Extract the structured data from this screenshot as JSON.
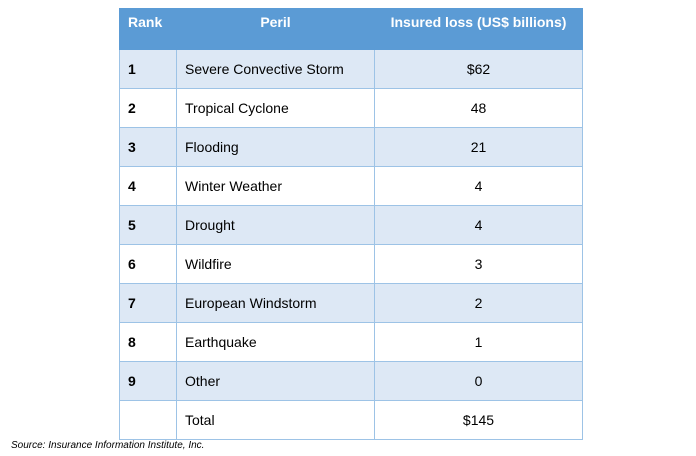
{
  "table": {
    "headers": {
      "rank": "Rank",
      "peril": "Peril",
      "loss": "Insured loss (US$ billions)"
    },
    "rows": [
      {
        "rank": "1",
        "peril": "Severe Convective Storm",
        "loss": "$62"
      },
      {
        "rank": "2",
        "peril": "Tropical Cyclone",
        "loss": "48"
      },
      {
        "rank": "3",
        "peril": "Flooding",
        "loss": "21"
      },
      {
        "rank": "4",
        "peril": "Winter Weather",
        "loss": "4"
      },
      {
        "rank": "5",
        "peril": "Drought",
        "loss": "4"
      },
      {
        "rank": "6",
        "peril": "Wildfire",
        "loss": "3"
      },
      {
        "rank": "7",
        "peril": "European Windstorm",
        "loss": "2"
      },
      {
        "rank": "8",
        "peril": "Earthquake",
        "loss": "1"
      },
      {
        "rank": "9",
        "peril": "Other",
        "loss": "0"
      },
      {
        "rank": "",
        "peril": "Total",
        "loss": "$145"
      }
    ]
  },
  "source": "Source: Insurance Information Institute, Inc.",
  "colors": {
    "header_bg": "#5b9bd5",
    "band_bg": "#dde8f5",
    "border": "#9dc3e6"
  }
}
